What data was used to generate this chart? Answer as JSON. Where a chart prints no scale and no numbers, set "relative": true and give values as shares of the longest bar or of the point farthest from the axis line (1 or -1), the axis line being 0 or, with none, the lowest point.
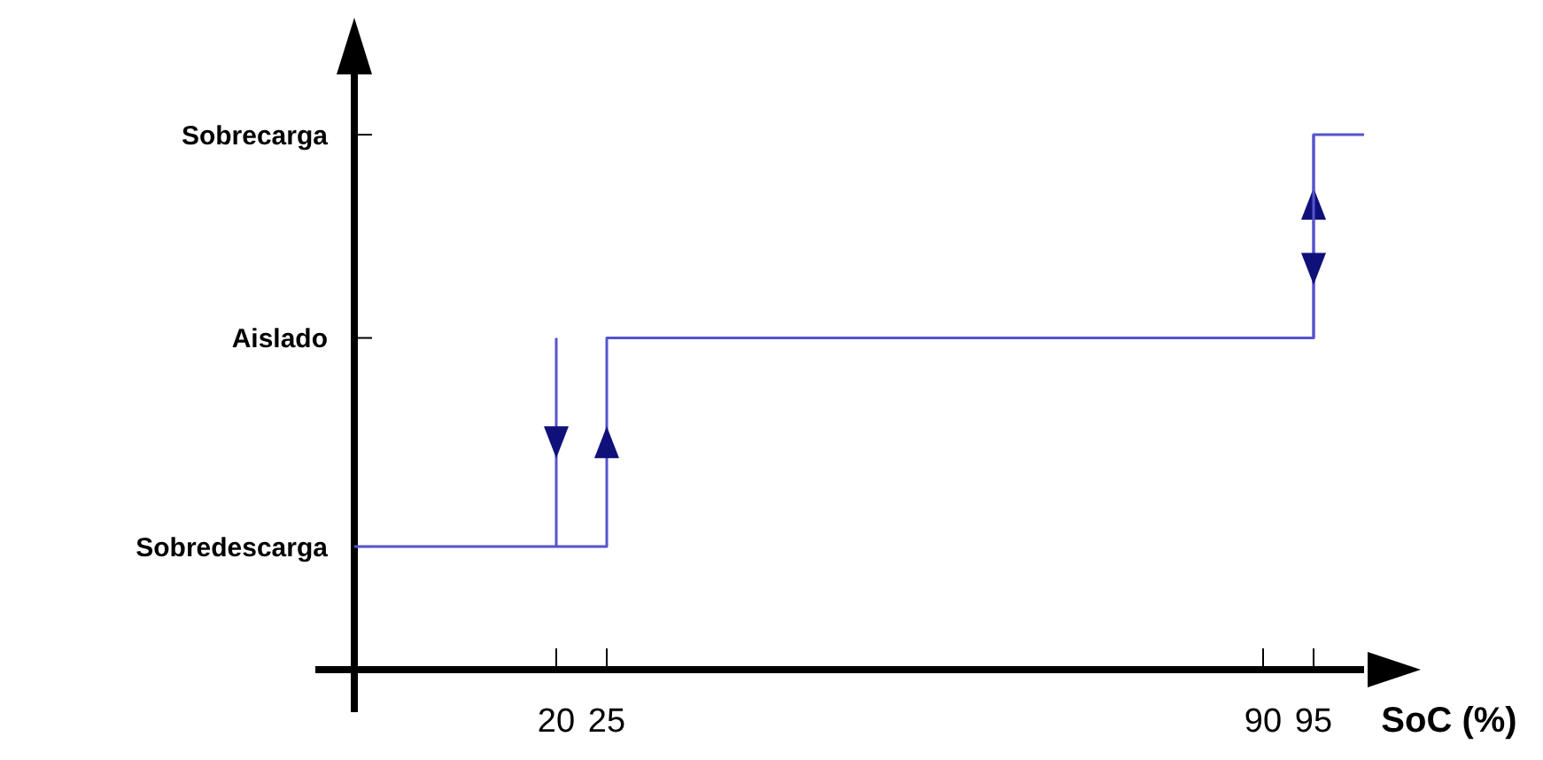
{
  "chart_data": {
    "type": "line",
    "relative": true,
    "xlabel": "SoC (%)",
    "xlim": [
      0,
      100
    ],
    "xticks": [
      20,
      25,
      90,
      95
    ],
    "y_categories": [
      "Sobrecarga",
      "Aislado",
      "Sobredescarga"
    ],
    "grid": false,
    "marker": "none",
    "line_style": "solid",
    "series": [
      {
        "color": "#5555cc",
        "x": [
          0,
          25,
          25,
          95,
          95,
          100
        ],
        "values": [
          0.23,
          0.23,
          0.62,
          0.62,
          1,
          1
        ]
      },
      {
        "color": "#5555cc",
        "x": [
          20,
          20
        ],
        "values": [
          0.62,
          0.23
        ]
      },
      {
        "color": "#5555cc",
        "x": [
          95,
          95
        ],
        "values": [
          1,
          0.62
        ]
      }
    ]
  }
}
